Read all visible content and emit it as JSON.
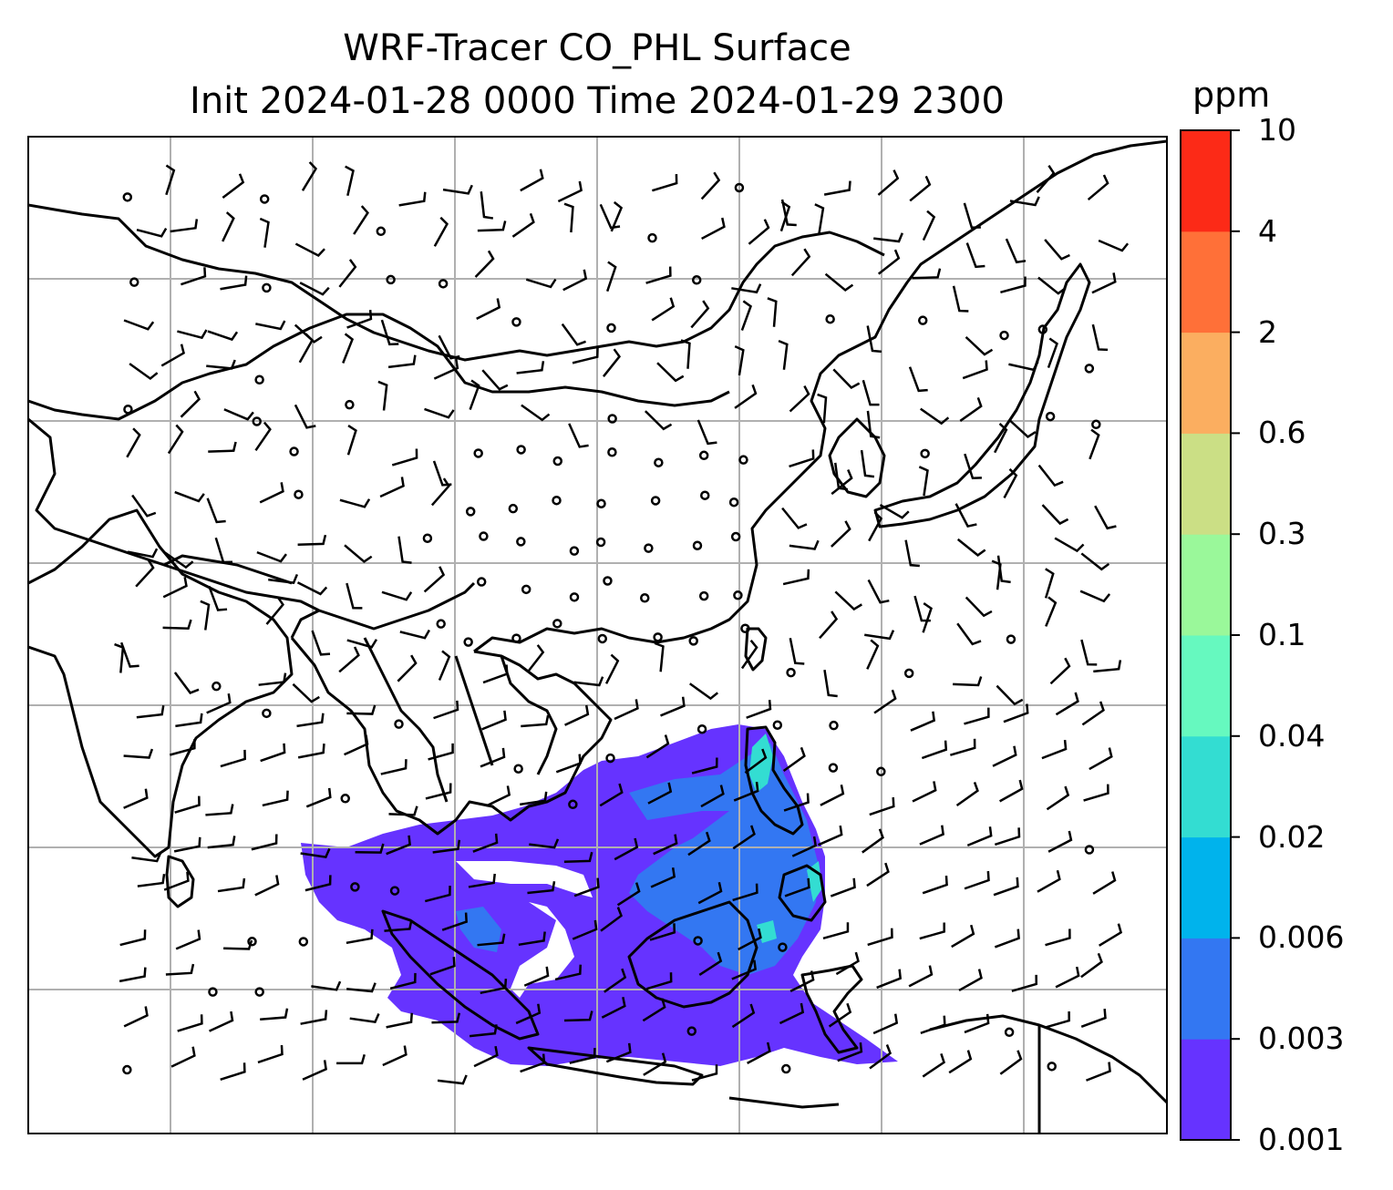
{
  "title": {
    "line1": "WRF-Tracer CO_PHL Surface",
    "line2": "Init 2024-01-28 0000 Time 2024-01-29 2300"
  },
  "colorbar": {
    "unit": "ppm",
    "levels": [
      "0.001",
      "0.003",
      "0.006",
      "0.02",
      "0.04",
      "0.1",
      "0.3",
      "0.6",
      "2",
      "4",
      "10"
    ],
    "colors": [
      "#6633ff",
      "#3377f2",
      "#00b3ec",
      "#33ddd2",
      "#66f9bf",
      "#9af89a",
      "#cbdf85",
      "#fbae60",
      "#ff7038",
      "#fc2a17"
    ]
  },
  "map": {
    "gridlines": true,
    "plume_color": "#6633ff",
    "plume_core_color": "#3377f2",
    "plume_hot_color": "#33ddd2",
    "wind_barbs": true
  }
}
